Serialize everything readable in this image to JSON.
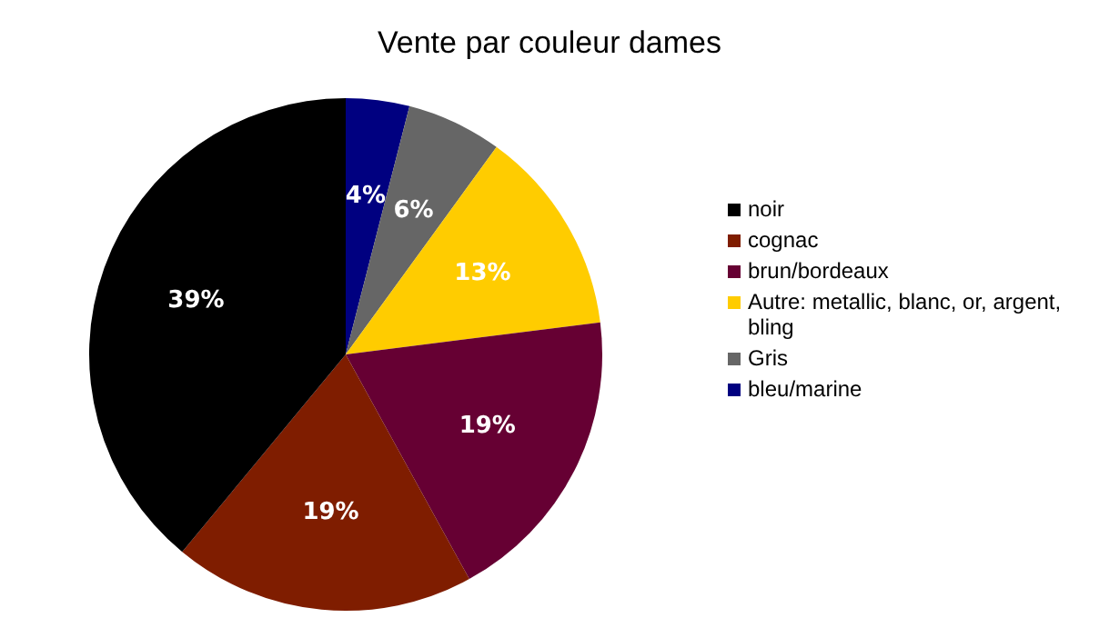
{
  "chart_data": {
    "type": "pie",
    "title": "Vente par couleur dames",
    "categories": [
      "bleu/marine",
      "Gris",
      "Autre: metallic, blanc, or, argent, bling",
      "brun/bordeaux",
      "cognac",
      "noir"
    ],
    "values": [
      4,
      6,
      13,
      19,
      19,
      39
    ],
    "colors": [
      "#000080",
      "#666666",
      "#ffcc00",
      "#660033",
      "#7f1d00",
      "#000000"
    ],
    "value_labels": [
      "4%",
      "6%",
      "13%",
      "19%",
      "19%",
      "39%"
    ],
    "legend": "right"
  }
}
